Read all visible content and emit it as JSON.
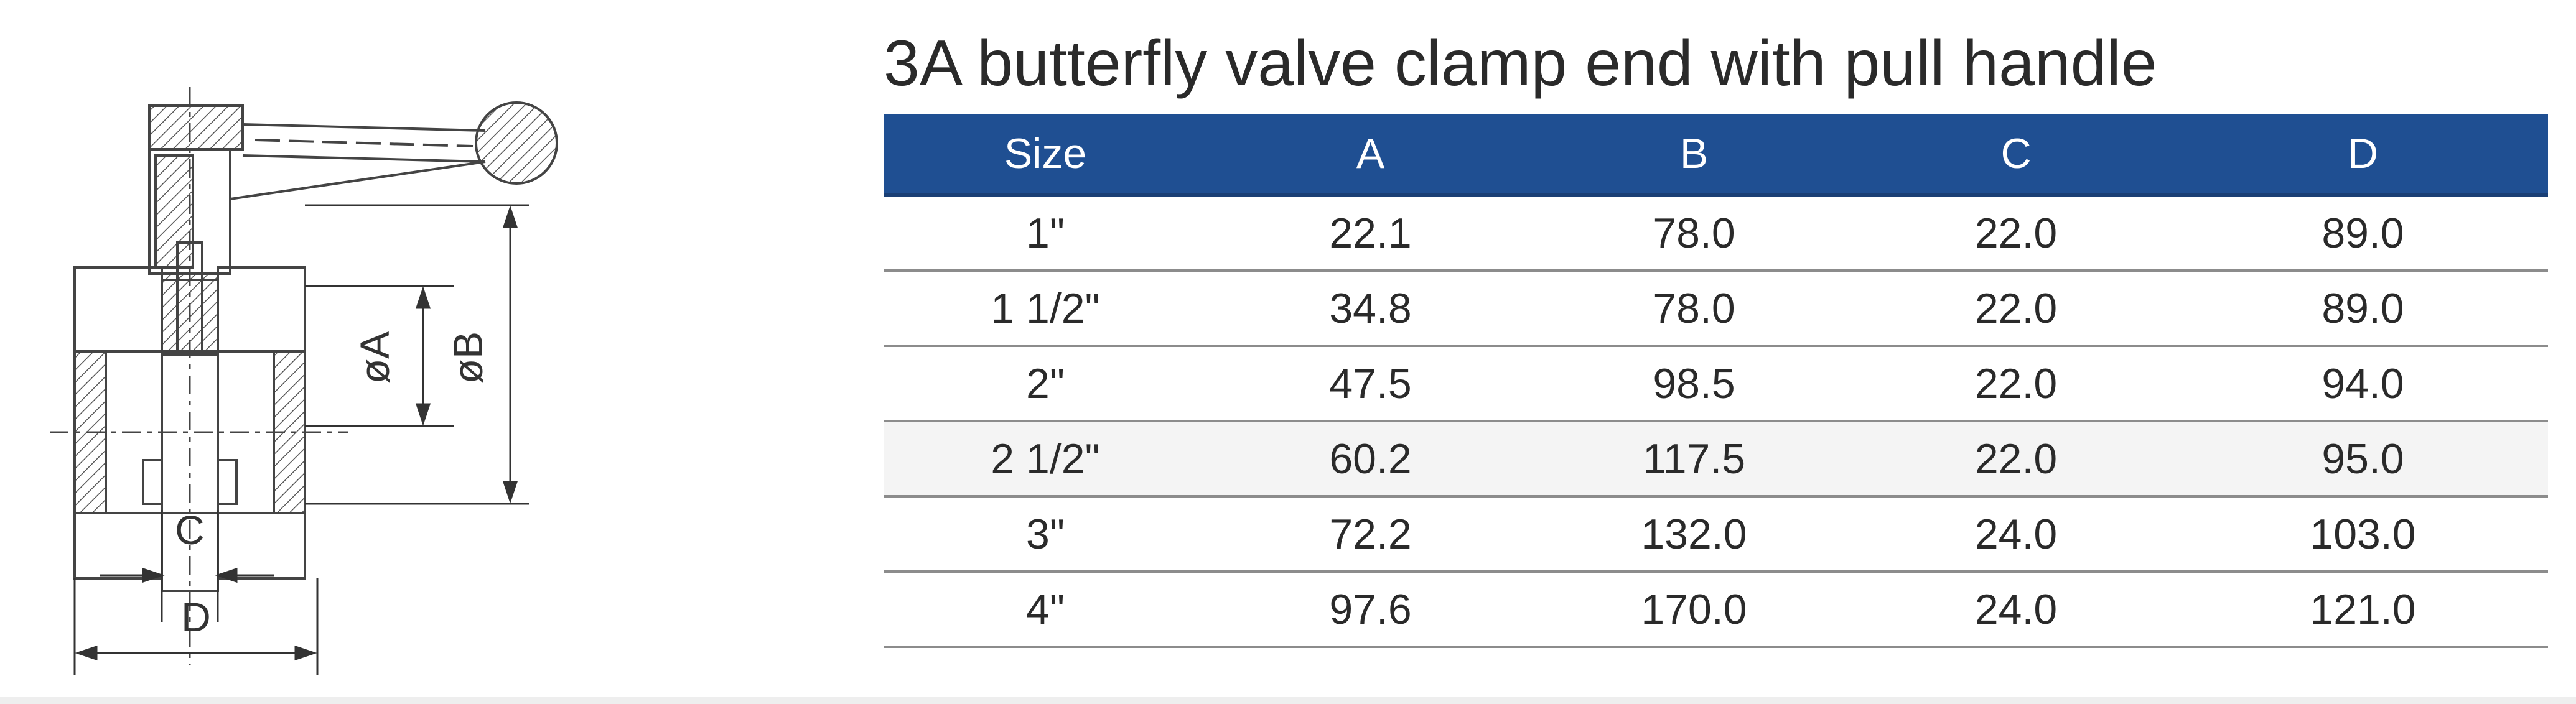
{
  "title": "3A butterfly valve clamp end with pull handle",
  "drawing": {
    "dim_a": "øA",
    "dim_b": "øB",
    "dim_c": "C",
    "dim_d": "D"
  },
  "table": {
    "headers": [
      "Size",
      "A",
      "B",
      "C",
      "D"
    ],
    "rows": [
      [
        "1\"",
        "22.1",
        "78.0",
        "22.0",
        "89.0"
      ],
      [
        "1 1/2\"",
        "34.8",
        "78.0",
        "22.0",
        "89.0"
      ],
      [
        "2\"",
        "47.5",
        "98.5",
        "22.0",
        "94.0"
      ],
      [
        "2 1/2\"",
        "60.2",
        "117.5",
        "22.0",
        "95.0"
      ],
      [
        "3\"",
        "72.2",
        "132.0",
        "24.0",
        "103.0"
      ],
      [
        "4\"",
        "97.6",
        "170.0",
        "24.0",
        "121.0"
      ]
    ]
  },
  "colors": {
    "header_bg": "#1f4f92",
    "header_text": "#ffffff",
    "row_highlight": "#f4f4f4"
  }
}
